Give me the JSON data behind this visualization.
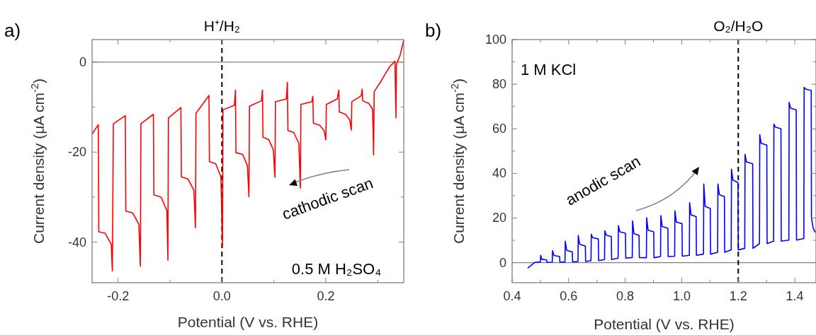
{
  "chart_data": [
    {
      "type": "line",
      "title": "a)",
      "xlabel": "Potential (V vs. RHE)",
      "ylabel": "Current density (μA cm$^{-2}$)",
      "xlim": [
        -0.25,
        0.35
      ],
      "ylim": [
        -49,
        5
      ],
      "xticks": [
        {
          "value": -0.2,
          "label": "-0.2"
        },
        {
          "value": -0.1,
          "label": null
        },
        {
          "value": 0,
          "label": "0.0"
        },
        {
          "value": 0.1,
          "label": null
        },
        {
          "value": 0.2,
          "label": "0.2"
        },
        {
          "value": 0.3,
          "label": null
        }
      ],
      "yticks": [
        {
          "value": -40,
          "label": "-40"
        },
        {
          "value": -30,
          "label": null
        },
        {
          "value": -20,
          "label": "-20"
        },
        {
          "value": -10,
          "label": null
        },
        0
      ],
      "x": [
        -0.25,
        -0.238,
        -0.237,
        -0.225,
        -0.213,
        -0.211,
        -0.209,
        -0.186,
        -0.185,
        -0.172,
        -0.16,
        -0.157,
        -0.156,
        -0.132,
        -0.131,
        -0.117,
        -0.106,
        -0.104,
        -0.103,
        -0.079,
        -0.078,
        -0.065,
        -0.054,
        -0.051,
        -0.05,
        -0.025,
        -0.024,
        -0.012,
        -0.002,
        0.001,
        0.002,
        0.024,
        0.026,
        0.027,
        0.04,
        0.049,
        0.052,
        0.053,
        0.076,
        0.078,
        0.079,
        0.09,
        0.099,
        0.102,
        0.103,
        0.124,
        0.126,
        0.127,
        0.138,
        0.148,
        0.151,
        0.152,
        0.173,
        0.175,
        0.176,
        0.188,
        0.197,
        0.2,
        0.201,
        0.222,
        0.225,
        0.226,
        0.238,
        0.246,
        0.249,
        0.25,
        0.268,
        0.27,
        0.271,
        0.283,
        0.29,
        0.292,
        0.293,
        0.305,
        0.313,
        0.323,
        0.333,
        0.335,
        0.336,
        0.343,
        0.35
      ],
      "series": [
        {
          "color": "#ff0000",
          "values": [
            -16.0,
            -13.9,
            -37.7,
            -38.0,
            -40.5,
            -46.4,
            -13.7,
            -11.9,
            -33.1,
            -33.5,
            -36,
            -45.3,
            -13.7,
            -11.6,
            -29.5,
            -30,
            -33,
            -44.0,
            -12.4,
            -10.1,
            -25.5,
            -26,
            -28.5,
            -36.8,
            -11.4,
            -7.4,
            -22.1,
            -22.6,
            -25.5,
            -41.1,
            -10.6,
            -9.6,
            -6.2,
            -20.1,
            -20.5,
            -23,
            -29.9,
            -9.8,
            -8.6,
            -6.2,
            -16.7,
            -17.2,
            -19.5,
            -25.6,
            -8.8,
            -8.2,
            -4.5,
            -15.2,
            -15.6,
            -18,
            -28.0,
            -9.4,
            -8.8,
            -7.6,
            -13.6,
            -14,
            -15.3,
            -17.3,
            -9.4,
            -8.2,
            -6.2,
            -11.1,
            -11.6,
            -12.8,
            -15.1,
            -8.8,
            -7.5,
            -6.0,
            -8.6,
            -9.2,
            -10.5,
            -20.6,
            -6.6,
            -4.5,
            -2.9,
            -1.0,
            0.2,
            -12.4,
            -0.5,
            1.5,
            4.9
          ]
        }
      ],
      "ref_lines": [
        {
          "axis": "y",
          "value": 0,
          "label": null,
          "color": "#808080",
          "line_style": "solid"
        },
        {
          "axis": "x",
          "value": 0,
          "label": "H⁺/H₂",
          "color": "#000000",
          "line_style": "dashed"
        }
      ],
      "annotations": [
        "cathodic scan",
        "0.5 M H₂SO₄"
      ]
    },
    {
      "type": "line",
      "title": "b)",
      "xlabel": "Potential (V vs. RHE)",
      "ylabel": "Current density (μA cm$^{-2}$)",
      "xlim": [
        0.4,
        1.475
      ],
      "ylim": [
        -9,
        100
      ],
      "xticks": [
        0.4,
        {
          "value": 0.5,
          "label": null
        },
        0.6,
        {
          "value": 0.7,
          "label": null
        },
        0.8,
        {
          "value": 0.9,
          "label": null
        },
        {
          "value": 1.0,
          "label": "1.0"
        },
        {
          "value": 1.1,
          "label": null
        },
        1.2,
        {
          "value": 1.3,
          "label": null
        },
        1.4
      ],
      "yticks": [
        0,
        {
          "value": 10,
          "label": null
        },
        20,
        {
          "value": 30,
          "label": null
        },
        40,
        {
          "value": 50,
          "label": null
        },
        60,
        {
          "value": 70,
          "label": null
        },
        80,
        {
          "value": 90,
          "label": null
        },
        100
      ],
      "x": [
        0.455,
        0.48,
        0.5,
        0.501,
        0.505,
        0.522,
        0.523,
        0.542,
        0.543,
        0.548,
        0.568,
        0.569,
        0.587,
        0.588,
        0.593,
        0.613,
        0.614,
        0.633,
        0.634,
        0.639,
        0.659,
        0.66,
        0.679,
        0.68,
        0.685,
        0.705,
        0.706,
        0.727,
        0.728,
        0.733,
        0.751,
        0.752,
        0.775,
        0.776,
        0.781,
        0.801,
        0.802,
        0.825,
        0.826,
        0.831,
        0.849,
        0.85,
        0.875,
        0.876,
        0.881,
        0.901,
        0.902,
        0.925,
        0.926,
        0.931,
        0.951,
        0.952,
        0.975,
        0.976,
        0.981,
        1.001,
        1.002,
        1.027,
        1.028,
        1.033,
        1.051,
        1.052,
        1.077,
        1.078,
        1.083,
        1.101,
        1.102,
        1.127,
        1.128,
        1.133,
        1.151,
        1.152,
        1.175,
        1.176,
        1.181,
        1.199,
        1.2,
        1.223,
        1.224,
        1.229,
        1.251,
        1.252,
        1.275,
        1.276,
        1.281,
        1.301,
        1.302,
        1.325,
        1.326,
        1.331,
        1.351,
        1.352,
        1.379,
        1.38,
        1.385,
        1.405,
        1.406,
        1.432,
        1.433,
        1.438,
        1.458,
        1.459,
        1.465,
        1.473
      ],
      "series": [
        {
          "color": "#0000ff",
          "values": [
            -2.5,
            0.1,
            0.3,
            3.3,
            1.5,
            1.2,
            0.1,
            0.2,
            5.4,
            3.2,
            2.7,
            0.2,
            0.3,
            9.6,
            5.5,
            4.8,
            0.3,
            0.5,
            12.2,
            8.2,
            7.5,
            0.5,
            0.9,
            12.7,
            11.2,
            10.6,
            0.9,
            1.4,
            14.3,
            12.3,
            11.7,
            1.4,
            2.0,
            16.6,
            13.8,
            13.2,
            2.0,
            2.3,
            18.7,
            13.0,
            12.2,
            2.3,
            2.2,
            20.1,
            14.5,
            13.8,
            2.2,
            2.7,
            21.1,
            16.2,
            15.4,
            2.7,
            2.9,
            23.2,
            18.2,
            17.5,
            2.9,
            3.3,
            26.9,
            21.4,
            20.6,
            3.3,
            3.8,
            35.3,
            25.2,
            24.3,
            3.8,
            4.6,
            35.3,
            30.5,
            29.6,
            4.6,
            5.7,
            41.9,
            37.0,
            35.9,
            5.7,
            6.4,
            48.5,
            45.2,
            44.3,
            6.4,
            8.5,
            57.4,
            53.5,
            52.7,
            8.5,
            9.6,
            62.1,
            60.8,
            60.0,
            9.6,
            10.1,
            71.9,
            69.3,
            68.5,
            10.1,
            10.8,
            78.6,
            77.8,
            77.2,
            20,
            15.4,
            13.5
          ]
        }
      ],
      "ref_lines": [
        {
          "axis": "y",
          "value": 0,
          "label": null,
          "color": "#808080",
          "line_style": "solid"
        },
        {
          "axis": "x",
          "value": 1.2,
          "label": "O₂/H₂O",
          "color": "#000000",
          "line_style": "dashed"
        }
      ],
      "annotations": [
        "1 M KCl",
        "anodic scan"
      ]
    }
  ]
}
